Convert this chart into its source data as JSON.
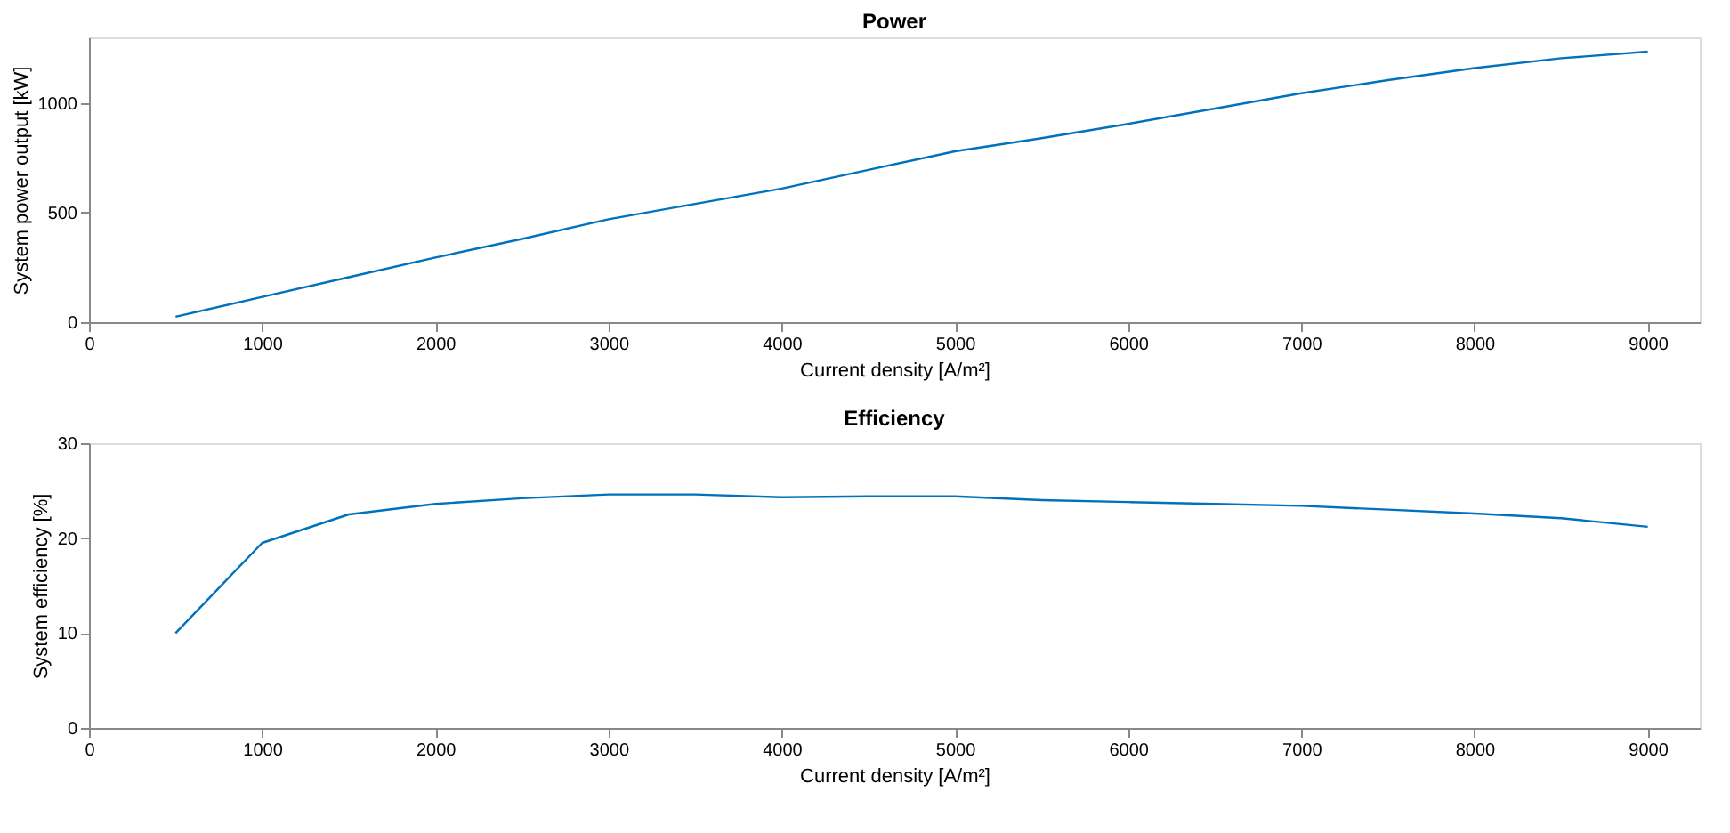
{
  "chart_data": [
    {
      "type": "line",
      "title": "Power",
      "xlabel": "Current density [A/m²]",
      "ylabel": "System power output [kW]",
      "x": [
        500,
        1000,
        1500,
        2000,
        2500,
        3000,
        3500,
        4000,
        4500,
        5000,
        5500,
        6000,
        6500,
        7000,
        7500,
        8000,
        8500,
        9000
      ],
      "series": [
        {
          "color": "#0072bd",
          "values": [
            25,
            115,
            205,
            295,
            380,
            470,
            540,
            610,
            695,
            780,
            840,
            905,
            975,
            1045,
            1105,
            1160,
            1205,
            1235
          ]
        }
      ],
      "xlim": [
        0,
        9300
      ],
      "xticks": [
        0,
        1000,
        2000,
        3000,
        4000,
        5000,
        6000,
        7000,
        8000,
        9000
      ],
      "ylim": [
        0,
        1300
      ],
      "yticks": [
        0,
        500,
        1000
      ],
      "grid": false,
      "legend": false
    },
    {
      "type": "line",
      "title": "Efficiency",
      "xlabel": "Current density [A/m²]",
      "ylabel": "System efficiency [%]",
      "x": [
        500,
        1000,
        1500,
        2000,
        2500,
        3000,
        3500,
        4000,
        4500,
        5000,
        5500,
        6000,
        6500,
        7000,
        7500,
        8000,
        8500,
        9000
      ],
      "series": [
        {
          "color": "#0072bd",
          "values": [
            10.0,
            19.5,
            22.5,
            23.6,
            24.2,
            24.6,
            24.6,
            24.3,
            24.4,
            24.4,
            24.0,
            23.8,
            23.6,
            23.4,
            23.0,
            22.6,
            22.1,
            21.2
          ]
        }
      ],
      "xlim": [
        0,
        9300
      ],
      "xticks": [
        0,
        1000,
        2000,
        3000,
        4000,
        5000,
        6000,
        7000,
        8000,
        9000
      ],
      "ylim": [
        0,
        30
      ],
      "yticks": [
        0,
        10,
        20,
        30
      ],
      "grid": false,
      "legend": false
    }
  ]
}
